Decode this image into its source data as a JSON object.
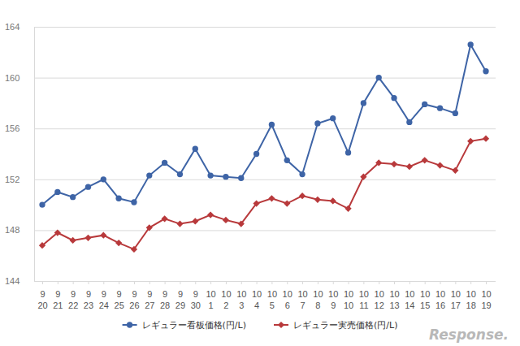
{
  "chart_data": {
    "type": "line",
    "categories": [
      "9\n20",
      "9\n21",
      "9\n22",
      "9\n23",
      "9\n24",
      "9\n25",
      "9\n26",
      "9\n27",
      "9\n28",
      "9\n29",
      "9\n30",
      "10\n1",
      "10\n2",
      "10\n3",
      "10\n4",
      "10\n5",
      "10\n6",
      "10\n7",
      "10\n8",
      "10\n9",
      "10\n10",
      "10\n11",
      "10\n12",
      "10\n13",
      "10\n14",
      "10\n15",
      "10\n16",
      "10\n17",
      "10\n18",
      "10\n19"
    ],
    "series": [
      {
        "name": "レギュラー看板価格(円/L)",
        "color": "#3e64a6",
        "marker": "circle",
        "values": [
          150.0,
          151.0,
          150.6,
          151.4,
          152.0,
          150.5,
          150.2,
          152.3,
          153.3,
          152.4,
          154.4,
          152.3,
          152.2,
          152.1,
          154.0,
          156.3,
          153.5,
          152.4,
          156.4,
          156.8,
          154.1,
          158.0,
          160.0,
          158.4,
          156.5,
          157.9,
          157.6,
          157.2,
          162.6,
          160.5
        ]
      },
      {
        "name": "レギュラー実売価格(円/L)",
        "color": "#b8393b",
        "marker": "diamond",
        "values": [
          146.8,
          147.8,
          147.2,
          147.4,
          147.6,
          147.0,
          146.5,
          148.2,
          148.9,
          148.5,
          148.7,
          149.2,
          148.8,
          148.5,
          150.1,
          150.5,
          150.1,
          150.7,
          150.4,
          150.3,
          149.7,
          152.2,
          153.3,
          153.2,
          153.0,
          153.5,
          153.1,
          152.7,
          155.0,
          155.2
        ]
      }
    ],
    "ylim": [
      144,
      164
    ],
    "yticks": [
      144,
      148,
      152,
      156,
      160,
      164
    ],
    "grid": true,
    "legend": "bottom",
    "annotations": [
      "Response."
    ]
  }
}
